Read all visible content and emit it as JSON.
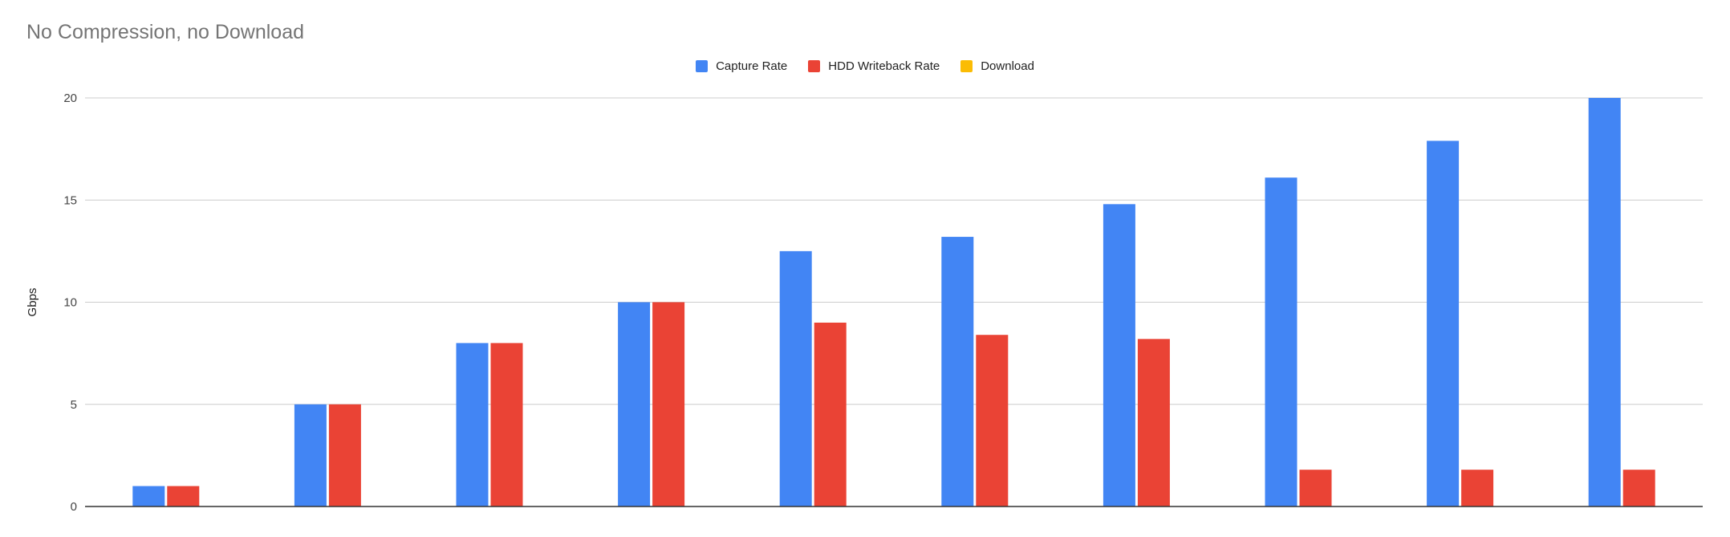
{
  "chart_data": {
    "type": "bar",
    "title": "No Compression, no Download",
    "xlabel": "",
    "ylabel": "Gbps",
    "ylim": [
      0,
      20
    ],
    "yticks": [
      0,
      5,
      10,
      15,
      20
    ],
    "grid": true,
    "legend_position": "top",
    "categories": [
      "",
      "",
      "",
      "",
      "",
      "",
      "",
      "",
      "",
      ""
    ],
    "series": [
      {
        "name": "Capture Rate",
        "color": "#4285F4",
        "values": [
          1,
          5,
          8,
          10,
          12.5,
          13.2,
          14.8,
          16.1,
          17.9,
          20
        ]
      },
      {
        "name": "HDD Writeback Rate",
        "color": "#EA4335",
        "values": [
          1,
          5,
          8,
          10,
          9,
          8.4,
          8.2,
          1.8,
          1.8,
          1.8
        ]
      },
      {
        "name": "Download",
        "color": "#FBBC04",
        "values": [
          0,
          0,
          0,
          0,
          0,
          0,
          0,
          0,
          0,
          0
        ]
      }
    ]
  }
}
